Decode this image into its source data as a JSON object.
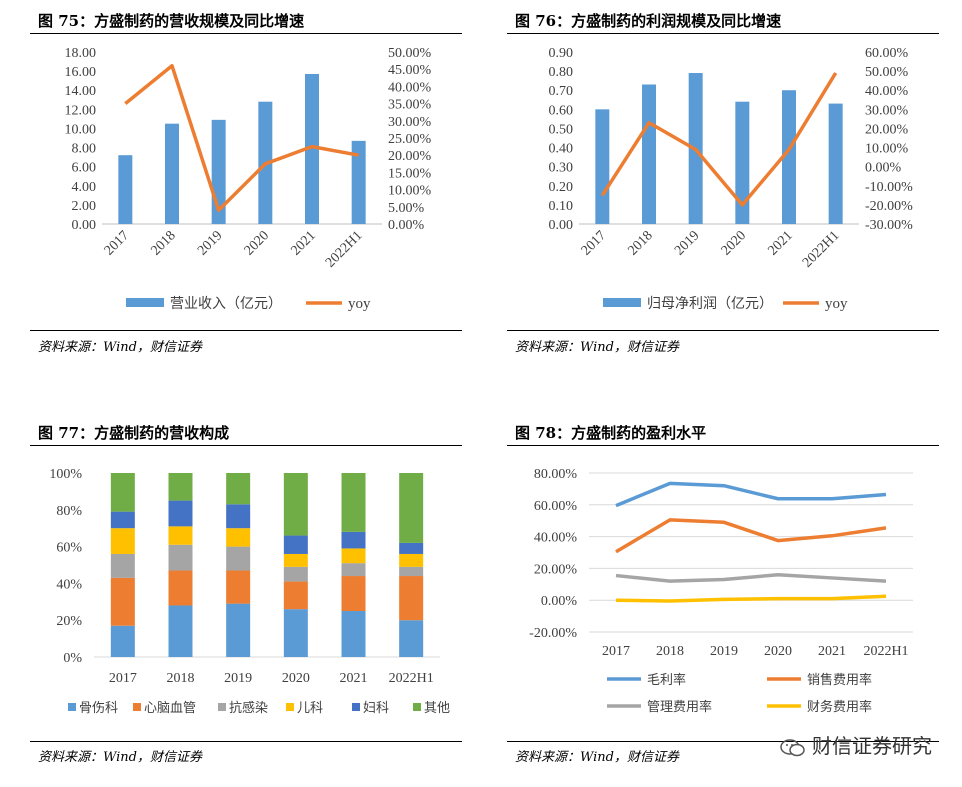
{
  "watermark": "财信证券研究",
  "chart_data": [
    {
      "id": "c75",
      "type": "bar+line",
      "title": "图 75：方盛制药的营收规模及同比增速",
      "categories": [
        "2017",
        "2018",
        "2019",
        "2020",
        "2021",
        "2022H1"
      ],
      "series": [
        {
          "name": "营业收入（亿元）",
          "type": "bar",
          "axis": "left",
          "color": "#5b9bd5",
          "values": [
            7.2,
            10.5,
            10.9,
            12.8,
            15.7,
            8.7
          ]
        },
        {
          "name": "yoy",
          "type": "line",
          "axis": "right",
          "color": "#ed7d31",
          "values": [
            35.0,
            46.0,
            4.0,
            17.5,
            22.5,
            20.0
          ]
        }
      ],
      "ylim_left": [
        0,
        18
      ],
      "yticks_left": [
        "0.00",
        "2.00",
        "4.00",
        "6.00",
        "8.00",
        "10.00",
        "12.00",
        "14.00",
        "16.00",
        "18.00"
      ],
      "ylim_right": [
        0,
        50
      ],
      "yticks_right": [
        "0.00%",
        "5.00%",
        "10.00%",
        "15.00%",
        "20.00%",
        "25.00%",
        "30.00%",
        "35.00%",
        "40.00%",
        "45.00%",
        "50.00%"
      ],
      "source": "资料来源：Wind，财信证券"
    },
    {
      "id": "c76",
      "type": "bar+line",
      "title": "图 76：方盛制药的利润规模及同比增速",
      "categories": [
        "2017",
        "2018",
        "2019",
        "2020",
        "2021",
        "2022H1"
      ],
      "series": [
        {
          "name": "归母净利润（亿元）",
          "type": "bar",
          "axis": "left",
          "color": "#5b9bd5",
          "values": [
            0.6,
            0.73,
            0.79,
            0.64,
            0.7,
            0.63
          ]
        },
        {
          "name": "yoy",
          "type": "line",
          "axis": "right",
          "color": "#ed7d31",
          "values": [
            -15.0,
            23.0,
            9.0,
            -20.0,
            9.0,
            49.0
          ]
        }
      ],
      "ylim_left": [
        0,
        0.9
      ],
      "yticks_left": [
        "0.00",
        "0.10",
        "0.20",
        "0.30",
        "0.40",
        "0.50",
        "0.60",
        "0.70",
        "0.80",
        "0.90"
      ],
      "ylim_right": [
        -30,
        60
      ],
      "yticks_right": [
        "-30.00%",
        "-20.00%",
        "-10.00%",
        "0.00%",
        "10.00%",
        "20.00%",
        "30.00%",
        "40.00%",
        "50.00%",
        "60.00%"
      ],
      "source": "资料来源：Wind，财信证券"
    },
    {
      "id": "c77",
      "type": "stacked-bar-100",
      "title": "图 77：方盛制药的营收构成",
      "categories": [
        "2017",
        "2018",
        "2019",
        "2020",
        "2021",
        "2022H1"
      ],
      "series": [
        {
          "name": "骨伤科",
          "color": "#5b9bd5",
          "values": [
            17,
            28,
            29,
            26,
            25,
            20
          ]
        },
        {
          "name": "心脑血管",
          "color": "#ed7d31",
          "values": [
            26,
            19,
            18,
            15,
            19,
            24
          ]
        },
        {
          "name": "抗感染",
          "color": "#a5a5a5",
          "values": [
            13,
            14,
            13,
            8,
            7,
            5
          ]
        },
        {
          "name": "儿科",
          "color": "#ffc000",
          "values": [
            14,
            10,
            10,
            7,
            8,
            7
          ]
        },
        {
          "name": "妇科",
          "color": "#4472c4",
          "values": [
            9,
            14,
            13,
            10,
            9,
            6
          ]
        },
        {
          "name": "其他",
          "color": "#70ad47",
          "values": [
            21,
            15,
            17,
            34,
            32,
            38
          ]
        }
      ],
      "yticks": [
        "0%",
        "20%",
        "40%",
        "60%",
        "80%",
        "100%"
      ],
      "source": "资料来源：Wind，财信证券"
    },
    {
      "id": "c78",
      "type": "line",
      "title": "图 78：方盛制药的盈利水平",
      "categories": [
        "2017",
        "2018",
        "2019",
        "2020",
        "2021",
        "2022H1"
      ],
      "series": [
        {
          "name": "毛利率",
          "color": "#5b9bd5",
          "values": [
            59.5,
            73.5,
            72.0,
            63.8,
            63.8,
            66.5
          ]
        },
        {
          "name": "销售费用率",
          "color": "#ed7d31",
          "values": [
            30.5,
            50.5,
            49.0,
            37.5,
            40.5,
            45.5
          ]
        },
        {
          "name": "管理费用率",
          "color": "#a5a5a5",
          "values": [
            15.5,
            12.0,
            13.0,
            16.0,
            14.0,
            12.0
          ]
        },
        {
          "name": "财务费用率",
          "color": "#ffc000",
          "values": [
            0.0,
            -0.5,
            0.5,
            1.0,
            1.0,
            2.5
          ]
        }
      ],
      "ylim": [
        -20,
        80
      ],
      "yticks": [
        "-20.00%",
        "0.00%",
        "20.00%",
        "40.00%",
        "60.00%",
        "80.00%"
      ],
      "source": "资料来源：Wind，财信证券"
    }
  ]
}
